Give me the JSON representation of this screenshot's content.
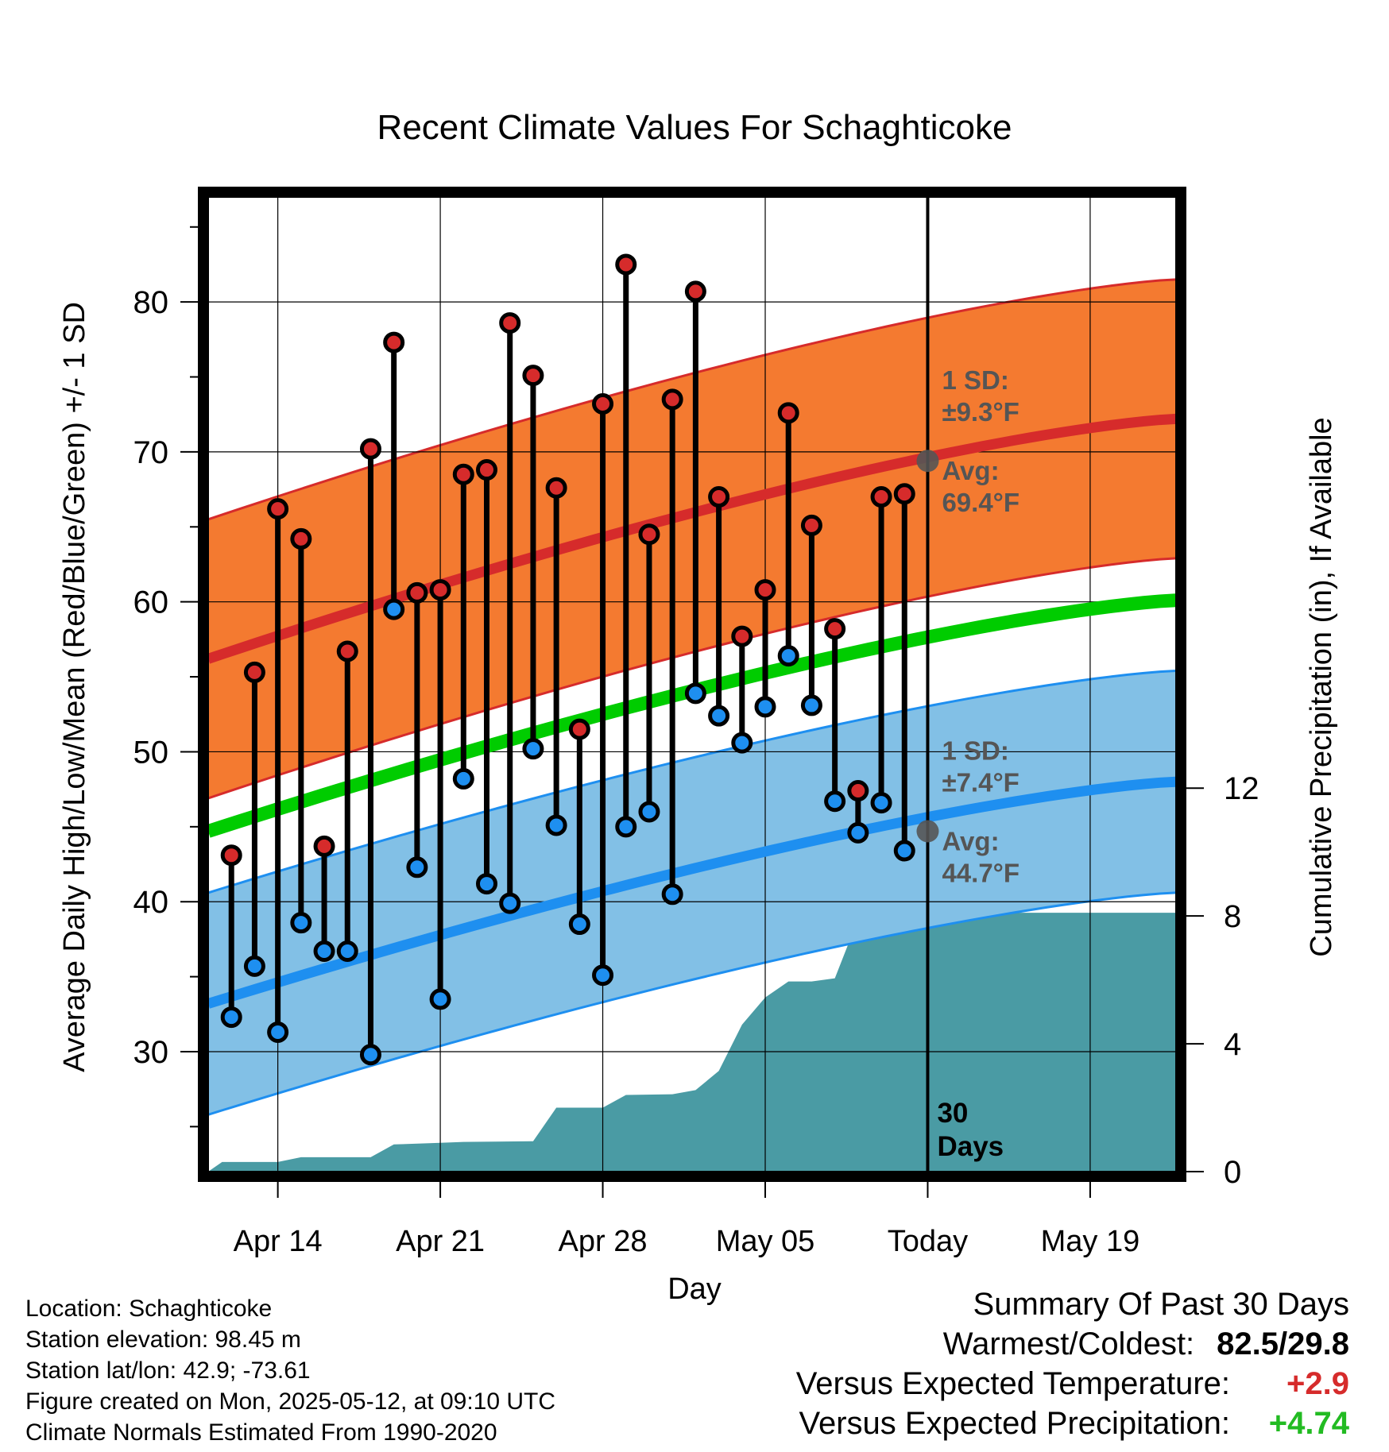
{
  "chart_data": {
    "type": "line",
    "title": "Recent Climate Values For Schaghticoke",
    "xlabel": "Day",
    "ylabel": "Average Daily High/Low/Mean (Red/Blue/Green) +/- 1 SD",
    "y2label": "Cumulative Precipitation (in), If Available",
    "ylim": [
      22,
      87
    ],
    "y2lim": [
      0,
      30.5
    ],
    "yticks": [
      "30",
      "40",
      "50",
      "60",
      "70",
      "80"
    ],
    "y2ticks": [
      "0",
      "4",
      "8",
      "12"
    ],
    "xticks": [
      {
        "day": 3,
        "label": "Apr 14"
      },
      {
        "day": 10,
        "label": "Apr 21"
      },
      {
        "day": 17,
        "label": "Apr 28"
      },
      {
        "day": 24,
        "label": "May 05"
      },
      {
        "day": 31,
        "label": "Today"
      },
      {
        "day": 38,
        "label": "May 19"
      }
    ],
    "xlim": [
      0,
      41.7
    ],
    "today_day": 31,
    "today_label": "30 Days",
    "days": [
      1,
      2,
      3,
      4,
      5,
      6,
      7,
      8,
      9,
      10,
      11,
      12,
      13,
      14,
      15,
      16,
      17,
      18,
      19,
      20,
      21,
      22,
      23,
      24,
      25,
      26,
      27,
      28,
      29,
      30
    ],
    "highs": [
      43.1,
      55.3,
      66.2,
      64.2,
      43.7,
      56.7,
      70.2,
      77.3,
      60.6,
      60.8,
      68.5,
      68.8,
      78.6,
      75.1,
      67.6,
      51.5,
      73.2,
      82.5,
      64.5,
      73.5,
      80.7,
      67.0,
      57.7,
      60.8,
      72.6,
      65.1,
      58.2,
      47.4,
      67.0,
      67.2
    ],
    "lows": [
      32.3,
      35.7,
      31.3,
      38.6,
      36.7,
      36.7,
      29.8,
      59.5,
      42.3,
      33.5,
      48.2,
      41.2,
      39.9,
      50.2,
      45.1,
      38.5,
      35.1,
      45.0,
      46.0,
      40.5,
      53.9,
      52.4,
      50.6,
      53.0,
      56.4,
      53.1,
      46.7,
      44.6,
      46.6,
      43.4
    ],
    "normals": {
      "start_day": 0,
      "end_day": 41.7,
      "high_start": 56.2,
      "high_end": 72.2,
      "high_sd": 9.3,
      "low_start": 33.2,
      "low_end": 48.0,
      "low_sd": 7.4,
      "mean_start": 44.7,
      "mean_end": 60.1
    },
    "precip_cumulative": [
      {
        "day": 0,
        "value": 0
      },
      {
        "day": 0.6,
        "value": 0.3
      },
      {
        "day": 3,
        "value": 0.3
      },
      {
        "day": 4,
        "value": 0.45
      },
      {
        "day": 7,
        "value": 0.45
      },
      {
        "day": 8,
        "value": 0.85
      },
      {
        "day": 10,
        "value": 0.9
      },
      {
        "day": 11,
        "value": 0.93
      },
      {
        "day": 14,
        "value": 0.95
      },
      {
        "day": 15,
        "value": 2.0
      },
      {
        "day": 17,
        "value": 2.0
      },
      {
        "day": 18,
        "value": 2.4
      },
      {
        "day": 20,
        "value": 2.42
      },
      {
        "day": 21,
        "value": 2.55
      },
      {
        "day": 22,
        "value": 3.15
      },
      {
        "day": 23,
        "value": 4.6
      },
      {
        "day": 24,
        "value": 5.45
      },
      {
        "day": 25,
        "value": 5.95
      },
      {
        "day": 26,
        "value": 5.95
      },
      {
        "day": 27,
        "value": 6.05
      },
      {
        "day": 28,
        "value": 7.9
      },
      {
        "day": 29,
        "value": 8.1
      },
      {
        "day": 30,
        "value": 8.1
      },
      {
        "day": 41.7,
        "value": 8.1
      }
    ],
    "annotations": {
      "high_sd_label": "1 SD:",
      "high_sd_value": "±9.3°F",
      "high_avg_label": "Avg:",
      "high_avg_value": "69.4°F",
      "low_sd_label": "1 SD:",
      "low_sd_value": "±7.4°F",
      "low_avg_label": "Avg:",
      "low_avg_value": "44.7°F",
      "today_high_avg": 69.4,
      "today_low_avg": 44.7
    },
    "colors": {
      "high_band": "#F47A30",
      "high_line": "#D62B2B",
      "low_band": "#82C0E6",
      "low_line": "#1E8FF0",
      "mean_line": "#00CC00",
      "precip": "#4A9BA4",
      "high_dot": "#D62B2B",
      "low_dot": "#1E8FF0",
      "annotation": "#555555"
    }
  },
  "footer": {
    "location": "Location: Schaghticoke",
    "elevation": "Station elevation: 98.45 m",
    "latlon": "Station lat/lon: 42.9; -73.61",
    "created": "Figure created on Mon, 2025-05-12, at 09:10 UTC",
    "normals": "Climate Normals Estimated From 1990-2020"
  },
  "summary": {
    "title": "Summary Of Past 30 Days",
    "warmest_label": "Warmest/Coldest:",
    "warmest_value": "82.5/29.8",
    "temp_label": "Versus Expected Temperature:",
    "temp_value": "+2.9",
    "temp_color": "#D62B2B",
    "precip_label": "Versus Expected Precipitation:",
    "precip_value": "+4.74",
    "precip_color": "#22BB22"
  }
}
